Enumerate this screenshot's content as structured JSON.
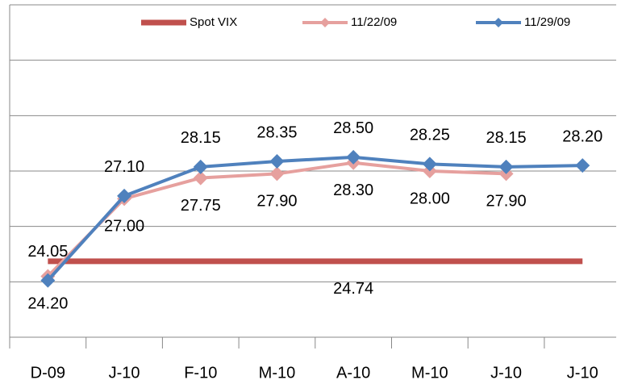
{
  "chart_data": {
    "type": "line",
    "categories": [
      "D-09",
      "J-10",
      "F-10",
      "M-10",
      "A-10",
      "M-10",
      "J-10",
      "J-10"
    ],
    "series": [
      {
        "name": "Spot VIX",
        "color": "#c0504d",
        "values": [
          24.74,
          24.74,
          24.74,
          24.74,
          24.74,
          24.74,
          24.74,
          24.74
        ],
        "value_labels": [
          null,
          null,
          null,
          null,
          "24.74",
          null,
          null,
          null
        ],
        "marker": false
      },
      {
        "name": "11/22/09",
        "color": "#e6a09e",
        "values": [
          24.2,
          27.0,
          27.75,
          27.9,
          28.3,
          28.0,
          27.9,
          null
        ],
        "value_labels": [
          "24.20",
          "27.00",
          "27.75",
          "27.90",
          "28.30",
          "28.00",
          "27.90",
          null
        ],
        "marker": true
      },
      {
        "name": "11/29/09",
        "color": "#4f81bd",
        "values": [
          24.05,
          27.1,
          28.15,
          28.35,
          28.5,
          28.25,
          28.15,
          28.2
        ],
        "value_labels": [
          "24.05",
          "27.10",
          "28.15",
          "28.35",
          "28.50",
          "28.25",
          "28.15",
          "28.20"
        ],
        "marker": true
      }
    ],
    "ylim": [
      22,
      34
    ],
    "yticks": [
      22,
      24,
      26,
      28,
      30,
      32,
      34
    ],
    "grid": true,
    "legend": "top"
  }
}
